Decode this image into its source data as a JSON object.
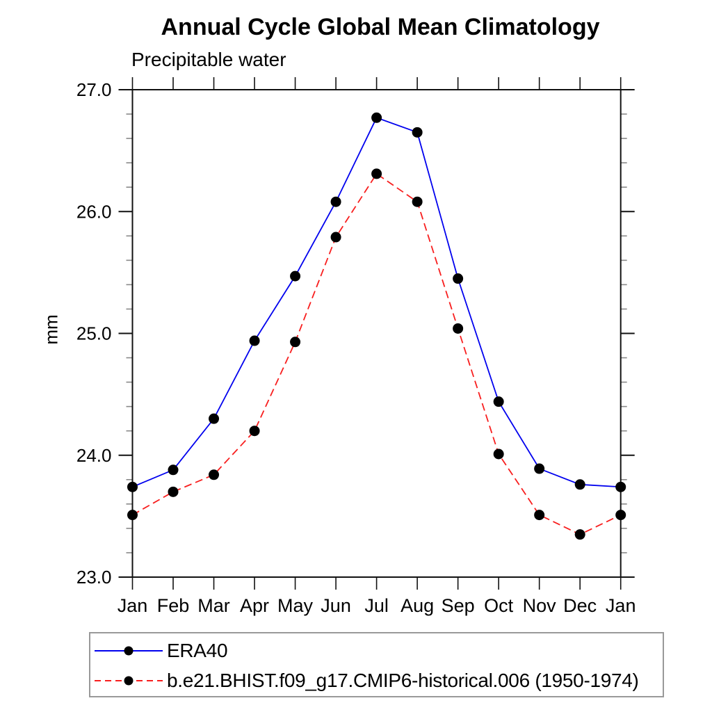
{
  "chart_data": {
    "type": "line",
    "title": "Annual Cycle Global Mean Climatology",
    "subtitle": "Precipitable water",
    "ylabel": "mm",
    "x_categories": [
      "Jan",
      "Feb",
      "Mar",
      "Apr",
      "May",
      "Jun",
      "Jul",
      "Aug",
      "Sep",
      "Oct",
      "Nov",
      "Dec",
      "Jan"
    ],
    "ylim": [
      23.0,
      27.0
    ],
    "ytick_major_step": 1.0,
    "ytick_minor_step": 0.2,
    "ytick_labels": [
      "23.0",
      "24.0",
      "25.0",
      "26.0",
      "27.0"
    ],
    "grid": false,
    "legend_position": "bottom-left-boxed",
    "series": [
      {
        "name": "ERA40",
        "color": "#0000ee",
        "line_style": "solid",
        "marker": "filled-circle",
        "marker_color": "#000000",
        "values": [
          23.74,
          23.88,
          24.3,
          24.94,
          25.47,
          26.08,
          26.77,
          26.65,
          25.45,
          24.44,
          23.89,
          23.76,
          23.74
        ]
      },
      {
        "name": "b.e21.BHIST.f09_g17.CMIP6-historical.006 (1950-1974)",
        "color": "#f81e1e",
        "line_style": "dashed",
        "marker": "filled-circle",
        "marker_color": "#000000",
        "values": [
          23.51,
          23.7,
          23.84,
          24.2,
          24.93,
          25.79,
          26.31,
          26.08,
          25.04,
          24.01,
          23.51,
          23.35,
          23.51
        ]
      }
    ]
  }
}
